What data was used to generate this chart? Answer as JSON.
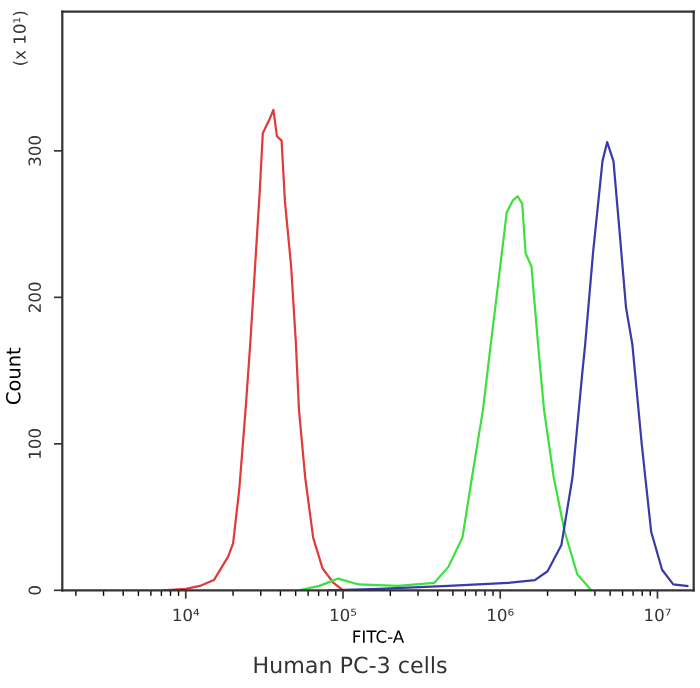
{
  "chart_data": {
    "type": "line",
    "xlabel": "FITC-A",
    "ylabel": "Count",
    "annotations": [
      "(x 10¹)",
      "Human PC-3 cells"
    ],
    "log": "x",
    "grid": false,
    "legend": false,
    "marker": "none",
    "line_style": "solid",
    "xlim": [
      1640,
      17000000
    ],
    "xticks": [
      {
        "value": 10000,
        "label": "10⁴"
      },
      {
        "value": 100000,
        "label": "10⁵"
      },
      {
        "value": 1000000,
        "label": "10⁶"
      },
      {
        "value": 10000000,
        "label": "10⁷"
      }
    ],
    "ylim": [
      0,
      395
    ],
    "yticks": [
      0,
      100,
      200,
      300
    ],
    "series": [
      {
        "color": "#e03a3a",
        "x": [
          7200,
          10000,
          12300,
          15100,
          18600,
          20000,
          21900,
          24000,
          25700,
          29500,
          30900,
          33900,
          36100,
          38000,
          40700,
          42700,
          46800,
          50100,
          52500,
          57500,
          64600,
          74100,
          87100,
          100000
        ],
        "values": [
          0,
          1,
          3,
          7,
          23,
          32,
          69,
          123,
          168,
          271,
          312,
          321,
          328,
          310,
          307,
          266,
          221,
          170,
          123,
          77,
          36,
          15,
          5,
          0
        ]
      },
      {
        "color": "#3ee03e",
        "x": [
          52500,
          70800,
          93300,
          126000,
          224000,
          380000,
          468000,
          575000,
          661000,
          776000,
          871000,
          1000000,
          1100000,
          1200000,
          1290000,
          1380000,
          1450000,
          1580000,
          1740000,
          1900000,
          2190000,
          2570000,
          3090000,
          3800000
        ],
        "values": [
          0,
          3,
          8,
          4,
          3,
          5,
          16,
          36,
          77,
          123,
          168,
          221,
          258,
          266,
          269,
          264,
          230,
          221,
          168,
          123,
          77,
          40,
          11,
          0
        ]
      },
      {
        "color": "#3a3aa8",
        "x": [
          81300,
          170000,
          468000,
          1120000,
          1660000,
          2000000,
          2450000,
          2880000,
          3310000,
          3470000,
          3890000,
          4470000,
          4790000,
          5250000,
          5750000,
          6310000,
          6920000,
          7940000,
          9120000,
          10700000,
          12600000,
          15500000
        ],
        "values": [
          0,
          1,
          3,
          5,
          7,
          13,
          31,
          77,
          146,
          168,
          230,
          293,
          306,
          293,
          244,
          193,
          168,
          100,
          40,
          14,
          4,
          3
        ]
      }
    ]
  }
}
